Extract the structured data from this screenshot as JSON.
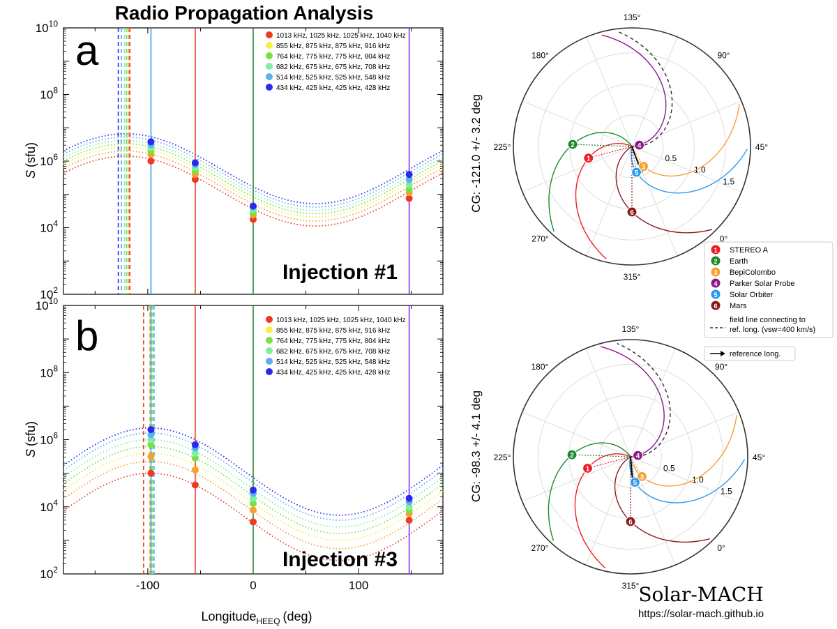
{
  "figure": {
    "title": "Radio Propagation Analysis",
    "xlabel_main": "Longitude",
    "xlabel_sub": "HEEQ",
    "xlabel_unit": "(deg)",
    "ylabel_var": "S",
    "ylabel_unit": "(sfu)",
    "solarmach_title": "Solar-MACH",
    "solarmach_url": "https://solar-mach.github.io"
  },
  "colors": {
    "freq": [
      "#ee3a22",
      "#f5a030",
      "#f2f040",
      "#7ae040",
      "#80eea0",
      "#5ab0f0",
      "#2a2aee"
    ],
    "sc_longitude_lines": {
      "-97": "#3aa0ee",
      "-55": "#ee3a22",
      "0": "#2e8a2e",
      "148": "#8a2aee"
    }
  },
  "chart_data": [
    {
      "type": "scatter",
      "panel_label": "a",
      "injection_label": "Injection #1",
      "xlim": [
        -180,
        180
      ],
      "ylim_log10": [
        2,
        10
      ],
      "xticks": [
        -100,
        0,
        100
      ],
      "yticks": [
        "10^2",
        "10^4",
        "10^6",
        "10^8",
        "10^10"
      ],
      "legend": [
        {
          "label": "1013 kHz, 1025 kHz, 1025 kHz, 1040 kHz",
          "color": "#ee3a22"
        },
        {
          "label": "855 kHz, 875 kHz, 875 kHz, 916 kHz",
          "color": "#f5f040"
        },
        {
          "label": "764 kHz, 775 kHz, 775 kHz, 804 kHz",
          "color": "#7ae040"
        },
        {
          "label": "682 kHz, 675 kHz, 675 kHz, 708 kHz",
          "color": "#80eea0"
        },
        {
          "label": "514 kHz, 525 kHz, 525 kHz, 548 kHz",
          "color": "#5ab0f0"
        },
        {
          "label": "434 kHz, 425 kHz, 425 kHz, 428 kHz",
          "color": "#2a2aee"
        }
      ],
      "curve": {
        "center_lon": -121,
        "amplitude_log10": 1.05
      },
      "curve_peaks_log10": [
        6.15,
        6.3,
        6.42,
        6.52,
        6.62,
        6.72,
        6.82
      ],
      "spacecraft_lon": [
        -97,
        -55,
        0,
        148
      ],
      "spacecraft_line_colors": [
        "#3aa0ee",
        "#ee3a22",
        "#2e8a2e",
        "#8a2aee"
      ],
      "points": [
        {
          "lon": -97,
          "log10": [
            6.0,
            6.2,
            6.3,
            6.4,
            6.5,
            6.58
          ]
        },
        {
          "lon": -55,
          "log10": [
            5.45,
            5.6,
            5.7,
            5.8,
            5.9,
            5.95
          ]
        },
        {
          "lon": 0,
          "log10": [
            4.25,
            4.38,
            4.45,
            4.55,
            4.62,
            4.65
          ]
        },
        {
          "lon": 148,
          "log10": [
            4.88,
            5.05,
            5.15,
            5.3,
            5.45,
            5.6
          ]
        }
      ],
      "injection_lon_dashed": [
        -128,
        -125,
        -122,
        -120,
        -118,
        -117
      ],
      "dashed_colors": [
        "#2a2aee",
        "#5ab0f0",
        "#80eea0",
        "#7ae040",
        "#f5a030",
        "#ee3a22"
      ]
    },
    {
      "type": "scatter",
      "panel_label": "b",
      "injection_label": "Injection #3",
      "xlim": [
        -180,
        180
      ],
      "ylim_log10": [
        2,
        10
      ],
      "xticks": [
        -100,
        0,
        100
      ],
      "yticks": [
        "10^2",
        "10^4",
        "10^6",
        "10^8",
        "10^10"
      ],
      "legend": [
        {
          "label": "1013 kHz, 1025 kHz, 1025 kHz, 1040 kHz",
          "color": "#ee3a22"
        },
        {
          "label": "855 kHz, 875 kHz, 875 kHz, 916 kHz",
          "color": "#f5f040"
        },
        {
          "label": "764 kHz, 775 kHz, 775 kHz, 804 kHz",
          "color": "#7ae040"
        },
        {
          "label": "682 kHz, 675 kHz, 675 kHz, 708 kHz",
          "color": "#80eea0"
        },
        {
          "label": "514 kHz, 525 kHz, 525 kHz, 548 kHz",
          "color": "#5ab0f0"
        },
        {
          "label": "434 kHz, 425 kHz, 425 kHz, 428 kHz",
          "color": "#2a2aee"
        }
      ],
      "curve": {
        "center_lon": -98,
        "amplitude_log10": 1.3
      },
      "curve_peaks_log10": [
        5.0,
        5.35,
        5.6,
        5.8,
        6.0,
        6.2,
        6.35
      ],
      "spacecraft_lon": [
        -97,
        -55,
        0,
        148
      ],
      "spacecraft_line_colors": [
        "#3aa0ee",
        "#ee3a22",
        "#2e8a2e",
        "#8a2aee"
      ],
      "points": [
        {
          "lon": -97,
          "log10": [
            5.0,
            5.5,
            5.85,
            6.0,
            6.15,
            6.3
          ]
        },
        {
          "lon": -55,
          "log10": [
            4.65,
            5.1,
            5.45,
            5.6,
            5.75,
            5.85
          ]
        },
        {
          "lon": 0,
          "log10": [
            3.55,
            3.9,
            4.1,
            4.25,
            4.4,
            4.5
          ]
        },
        {
          "lon": 148,
          "log10": [
            3.6,
            3.8,
            3.9,
            4.0,
            4.15,
            4.25
          ]
        }
      ],
      "injection_lon_dashed": [
        -104,
        -98,
        -96,
        -95,
        -94
      ],
      "dashed_colors": [
        "#ee3a22",
        "#f5a030",
        "#7ae040",
        "#80eea0",
        "#5ab0f0"
      ]
    }
  ],
  "polar": [
    {
      "cg_label": "CG: -121.0 +/-   3.2 deg",
      "ref_angle_deg": -121,
      "angle_labels": [
        "135°",
        "90°",
        "45°",
        "0°",
        "315°",
        "270°",
        "225°",
        "180°"
      ],
      "radial_labels": [
        "0.5",
        "1.0",
        "1.5"
      ]
    },
    {
      "cg_label": "CG:  -98.3 +/-   4.1 deg",
      "ref_angle_deg": -98,
      "angle_labels": [
        "135°",
        "90°",
        "45°",
        "0°",
        "315°",
        "270°",
        "225°",
        "180°"
      ],
      "radial_labels": [
        "0.5",
        "1.0",
        "1.5"
      ]
    }
  ],
  "polar_legend": {
    "items": [
      {
        "num": "1",
        "label": "STEREO A",
        "color": "#ee1c25"
      },
      {
        "num": "2",
        "label": "Earth",
        "color": "#1a8a2a"
      },
      {
        "num": "3",
        "label": "BepiColombo",
        "color": "#f5a030"
      },
      {
        "num": "4",
        "label": "Parker Solar Probe",
        "color": "#8a1a8a"
      },
      {
        "num": "5",
        "label": "Solar Orbiter",
        "color": "#2a9aee"
      },
      {
        "num": "6",
        "label": "Mars",
        "color": "#8a1a1a"
      }
    ],
    "field_line_label_1": "field line connecting to",
    "field_line_label_2": "ref. long. (vsw=400 km/s)",
    "reference_label": "reference long."
  }
}
